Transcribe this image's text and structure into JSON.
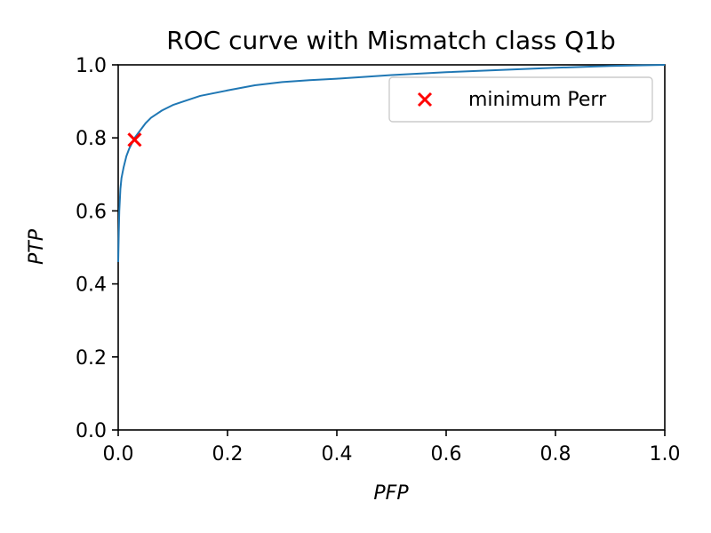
{
  "chart_data": {
    "type": "line",
    "title": "ROC curve with Mismatch class Q1b",
    "xlabel": "PFP",
    "ylabel": "PTP",
    "xlim": [
      0.0,
      1.0
    ],
    "ylim": [
      0.0,
      1.0
    ],
    "xticks": [
      "0.0",
      "0.2",
      "0.4",
      "0.6",
      "0.8",
      "1.0"
    ],
    "yticks": [
      "0.0",
      "0.2",
      "0.4",
      "0.6",
      "0.8",
      "1.0"
    ],
    "grid": false,
    "legend": {
      "position": "top-right",
      "entries": [
        {
          "label": "minimum Perr",
          "marker": "x",
          "color": "#ff0000"
        }
      ]
    },
    "series": [
      {
        "style": "line",
        "color": "#1f77b4",
        "x": [
          0.0,
          0.001,
          0.002,
          0.004,
          0.006,
          0.01,
          0.015,
          0.02,
          0.03,
          0.04,
          0.05,
          0.06,
          0.08,
          0.1,
          0.12,
          0.15,
          0.2,
          0.25,
          0.3,
          0.35,
          0.4,
          0.5,
          0.6,
          0.7,
          0.8,
          0.9,
          1.0
        ],
        "y": [
          0.46,
          0.54,
          0.6,
          0.66,
          0.69,
          0.72,
          0.75,
          0.77,
          0.8,
          0.82,
          0.84,
          0.855,
          0.875,
          0.89,
          0.9,
          0.915,
          0.93,
          0.944,
          0.953,
          0.958,
          0.962,
          0.972,
          0.98,
          0.986,
          0.992,
          0.997,
          1.0
        ]
      },
      {
        "name": "minimum Perr",
        "style": "scatter",
        "marker": "x",
        "color": "#ff0000",
        "x": [
          0.03
        ],
        "y": [
          0.795
        ]
      }
    ]
  }
}
